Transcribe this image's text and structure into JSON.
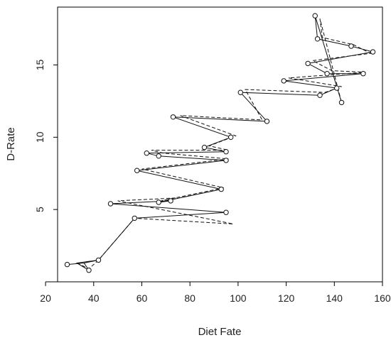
{
  "chart_data": {
    "type": "line",
    "xlabel": "Diet Fate",
    "ylabel": "D-Rate",
    "xlim": [
      25,
      160
    ],
    "ylim": [
      0,
      19
    ],
    "xticks": [
      20,
      40,
      60,
      80,
      100,
      120,
      140,
      160
    ],
    "yticks": [
      5,
      10,
      15
    ],
    "xtick_labels": [
      "20",
      "40",
      "60",
      "80",
      "100",
      "120",
      "140",
      "160"
    ],
    "ytick_labels": [
      "5",
      "10",
      "15"
    ],
    "points": [
      {
        "x": 29,
        "y": 1.2
      },
      {
        "x": 42,
        "y": 1.5
      },
      {
        "x": 38,
        "y": 0.8
      },
      {
        "x": 57,
        "y": 4.4
      },
      {
        "x": 95,
        "y": 4.8
      },
      {
        "x": 47,
        "y": 5.4
      },
      {
        "x": 72,
        "y": 5.6
      },
      {
        "x": 67,
        "y": 5.5
      },
      {
        "x": 93,
        "y": 6.4
      },
      {
        "x": 58,
        "y": 7.7
      },
      {
        "x": 95,
        "y": 8.4
      },
      {
        "x": 67,
        "y": 8.7
      },
      {
        "x": 62,
        "y": 8.9
      },
      {
        "x": 95,
        "y": 9.0
      },
      {
        "x": 86,
        "y": 9.3
      },
      {
        "x": 97,
        "y": 10.0
      },
      {
        "x": 73,
        "y": 11.4
      },
      {
        "x": 112,
        "y": 11.1
      },
      {
        "x": 101,
        "y": 13.1
      },
      {
        "x": 134,
        "y": 12.9
      },
      {
        "x": 141,
        "y": 13.4
      },
      {
        "x": 119,
        "y": 13.9
      },
      {
        "x": 152,
        "y": 14.4
      },
      {
        "x": 137,
        "y": 14.4
      },
      {
        "x": 129,
        "y": 15.1
      },
      {
        "x": 156,
        "y": 15.9
      },
      {
        "x": 147,
        "y": 16.3
      },
      {
        "x": 133,
        "y": 16.8
      },
      {
        "x": 132,
        "y": 18.4
      },
      {
        "x": 143,
        "y": 12.4
      }
    ],
    "series": [
      {
        "style": "solid",
        "x": [
          29,
          36,
          42,
          33,
          38,
          36,
          42,
          57,
          95,
          47,
          72,
          67,
          93,
          58,
          95,
          67,
          62,
          95,
          86,
          97,
          73,
          112,
          101,
          134,
          141,
          119,
          152,
          137,
          129,
          156,
          147,
          133,
          132,
          143
        ],
        "y": [
          1.2,
          1.3,
          1.5,
          1.3,
          0.8,
          1.3,
          1.5,
          4.4,
          4.8,
          5.4,
          5.6,
          5.5,
          6.4,
          7.7,
          8.4,
          8.7,
          8.9,
          9.0,
          9.3,
          10.0,
          11.4,
          11.1,
          13.1,
          12.9,
          13.4,
          13.9,
          14.4,
          14.4,
          15.1,
          15.9,
          16.3,
          16.8,
          18.4,
          12.4
        ]
      },
      {
        "style": "dashed",
        "x": [
          33,
          38,
          42,
          57,
          98,
          50,
          74,
          68,
          94,
          60,
          96,
          69,
          64,
          96,
          88,
          99,
          76,
          110,
          103,
          136,
          143,
          121,
          153,
          139,
          131,
          155,
          148,
          135,
          134,
          143
        ],
        "y": [
          1.3,
          0.9,
          1.5,
          4.4,
          4.0,
          5.6,
          5.8,
          5.6,
          6.5,
          7.8,
          8.5,
          8.9,
          9.1,
          9.1,
          9.4,
          10.1,
          11.5,
          11.2,
          13.3,
          13.1,
          13.5,
          14.1,
          14.5,
          14.6,
          15.3,
          15.8,
          16.4,
          16.9,
          18.2,
          12.4
        ]
      }
    ]
  }
}
